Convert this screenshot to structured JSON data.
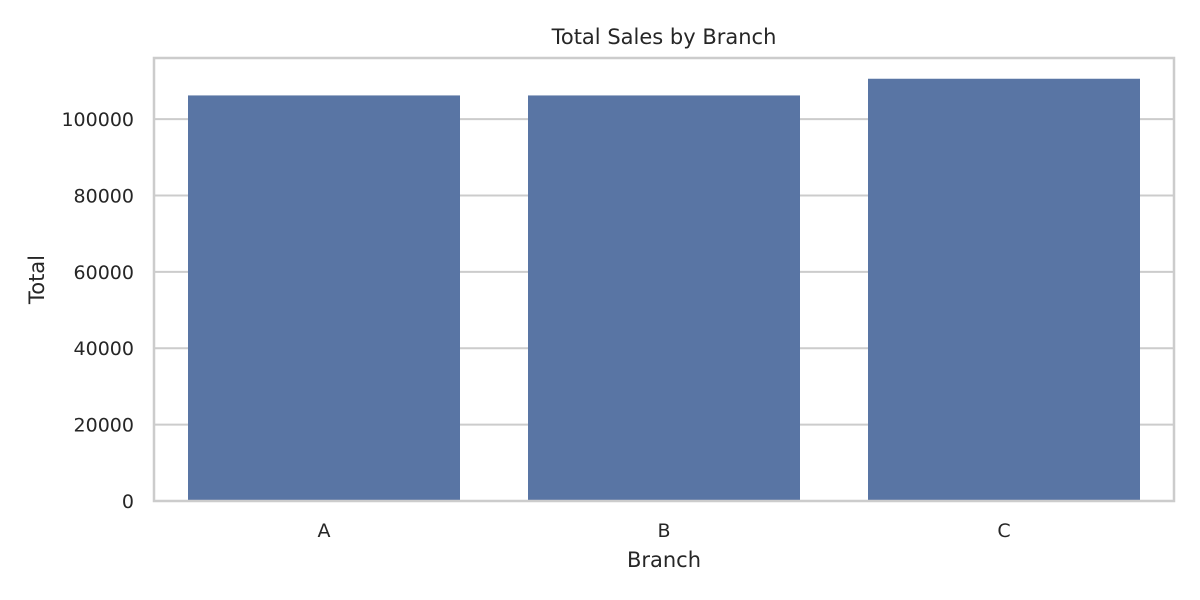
{
  "chart_data": {
    "type": "bar",
    "title": "Total Sales by Branch",
    "xlabel": "Branch",
    "ylabel": "Total",
    "categories": [
      "A",
      "B",
      "C"
    ],
    "values": [
      106200,
      106197,
      110568
    ],
    "ylim": [
      0,
      116000
    ],
    "yticks": [
      0,
      20000,
      40000,
      60000,
      80000,
      100000
    ],
    "ytick_labels": [
      "0",
      "20000",
      "40000",
      "60000",
      "80000",
      "100000"
    ],
    "grid": true,
    "legend": null,
    "bar_color": "#5975a4",
    "grid_color": "#cccccc",
    "frame_color": "#cccccc",
    "text_color": "#262626"
  }
}
